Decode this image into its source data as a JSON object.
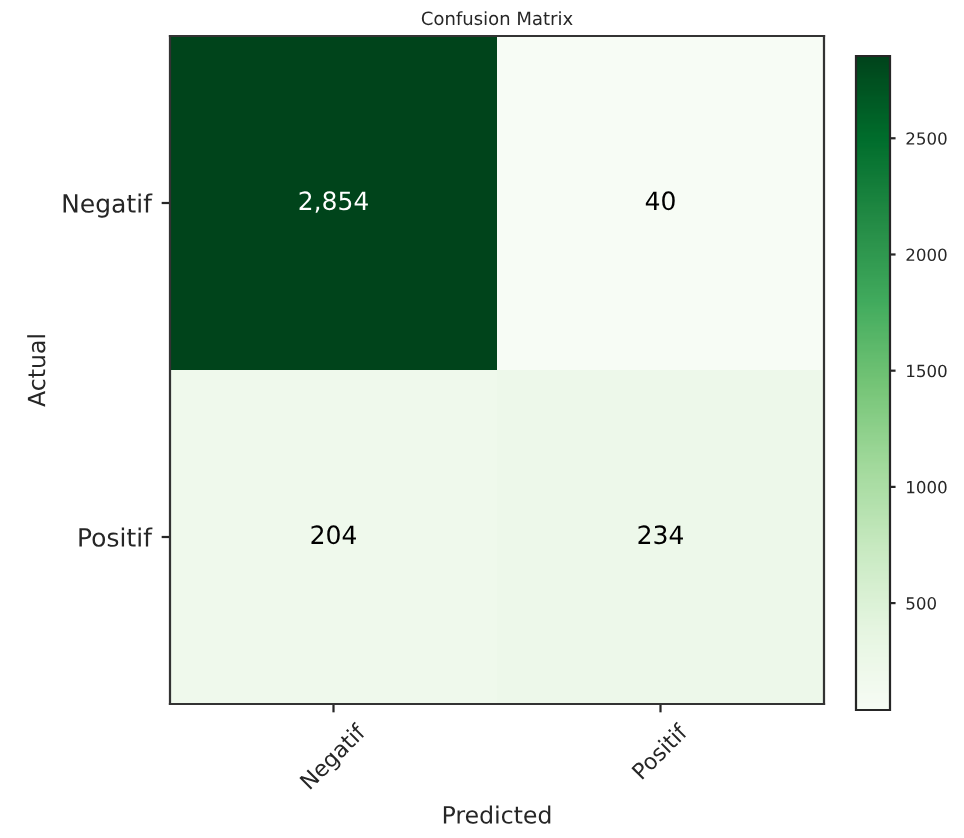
{
  "chart_data": {
    "type": "heatmap",
    "title": "Confusion Matrix",
    "xlabel": "Predicted",
    "ylabel": "Actual",
    "categories": [
      "Negatif",
      "Positif"
    ],
    "y_categories": [
      "Negatif",
      "Positif"
    ],
    "cells": [
      [
        2854,
        40
      ],
      [
        204,
        234
      ]
    ],
    "cell_labels": [
      [
        "2,854",
        "40"
      ],
      [
        "204",
        "234"
      ]
    ],
    "clim": [
      40,
      2854
    ],
    "cticks": [
      500,
      1000,
      1500,
      2000,
      2500
    ]
  }
}
